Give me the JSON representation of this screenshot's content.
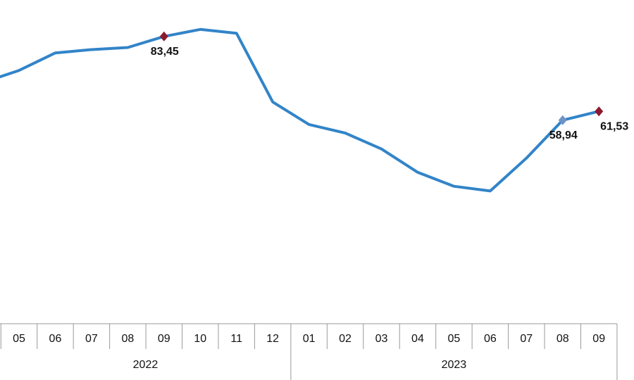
{
  "chart_data": {
    "type": "line",
    "categories": [
      null,
      "05",
      "06",
      "07",
      "08",
      "09",
      "10",
      "11",
      "12",
      "01",
      "02",
      "03",
      "04",
      "05",
      "06",
      "07",
      "08",
      "09"
    ],
    "category_groups": [
      {
        "label": "2022",
        "count": 9
      },
      {
        "label": "2023",
        "count": 9
      }
    ],
    "series": [
      {
        "name": null,
        "color": "#3284c8",
        "values": [
          69.97,
          73.5,
          78.62,
          79.6,
          80.21,
          83.45,
          85.51,
          84.39,
          64.27,
          57.68,
          55.18,
          50.51,
          43.68,
          39.59,
          38.21,
          47.83,
          58.94,
          61.53
        ],
        "value_labels": [
          null,
          null,
          null,
          null,
          null,
          "83,45",
          null,
          null,
          null,
          null,
          null,
          null,
          null,
          null,
          null,
          null,
          "58,94",
          "61,53"
        ],
        "marker_colors": [
          null,
          null,
          null,
          null,
          null,
          "#8b1a2e",
          null,
          null,
          null,
          null,
          null,
          null,
          null,
          null,
          null,
          null,
          "#6f93c9",
          "#8b1a2e"
        ]
      }
    ],
    "ylim": [
      30,
      90
    ]
  }
}
